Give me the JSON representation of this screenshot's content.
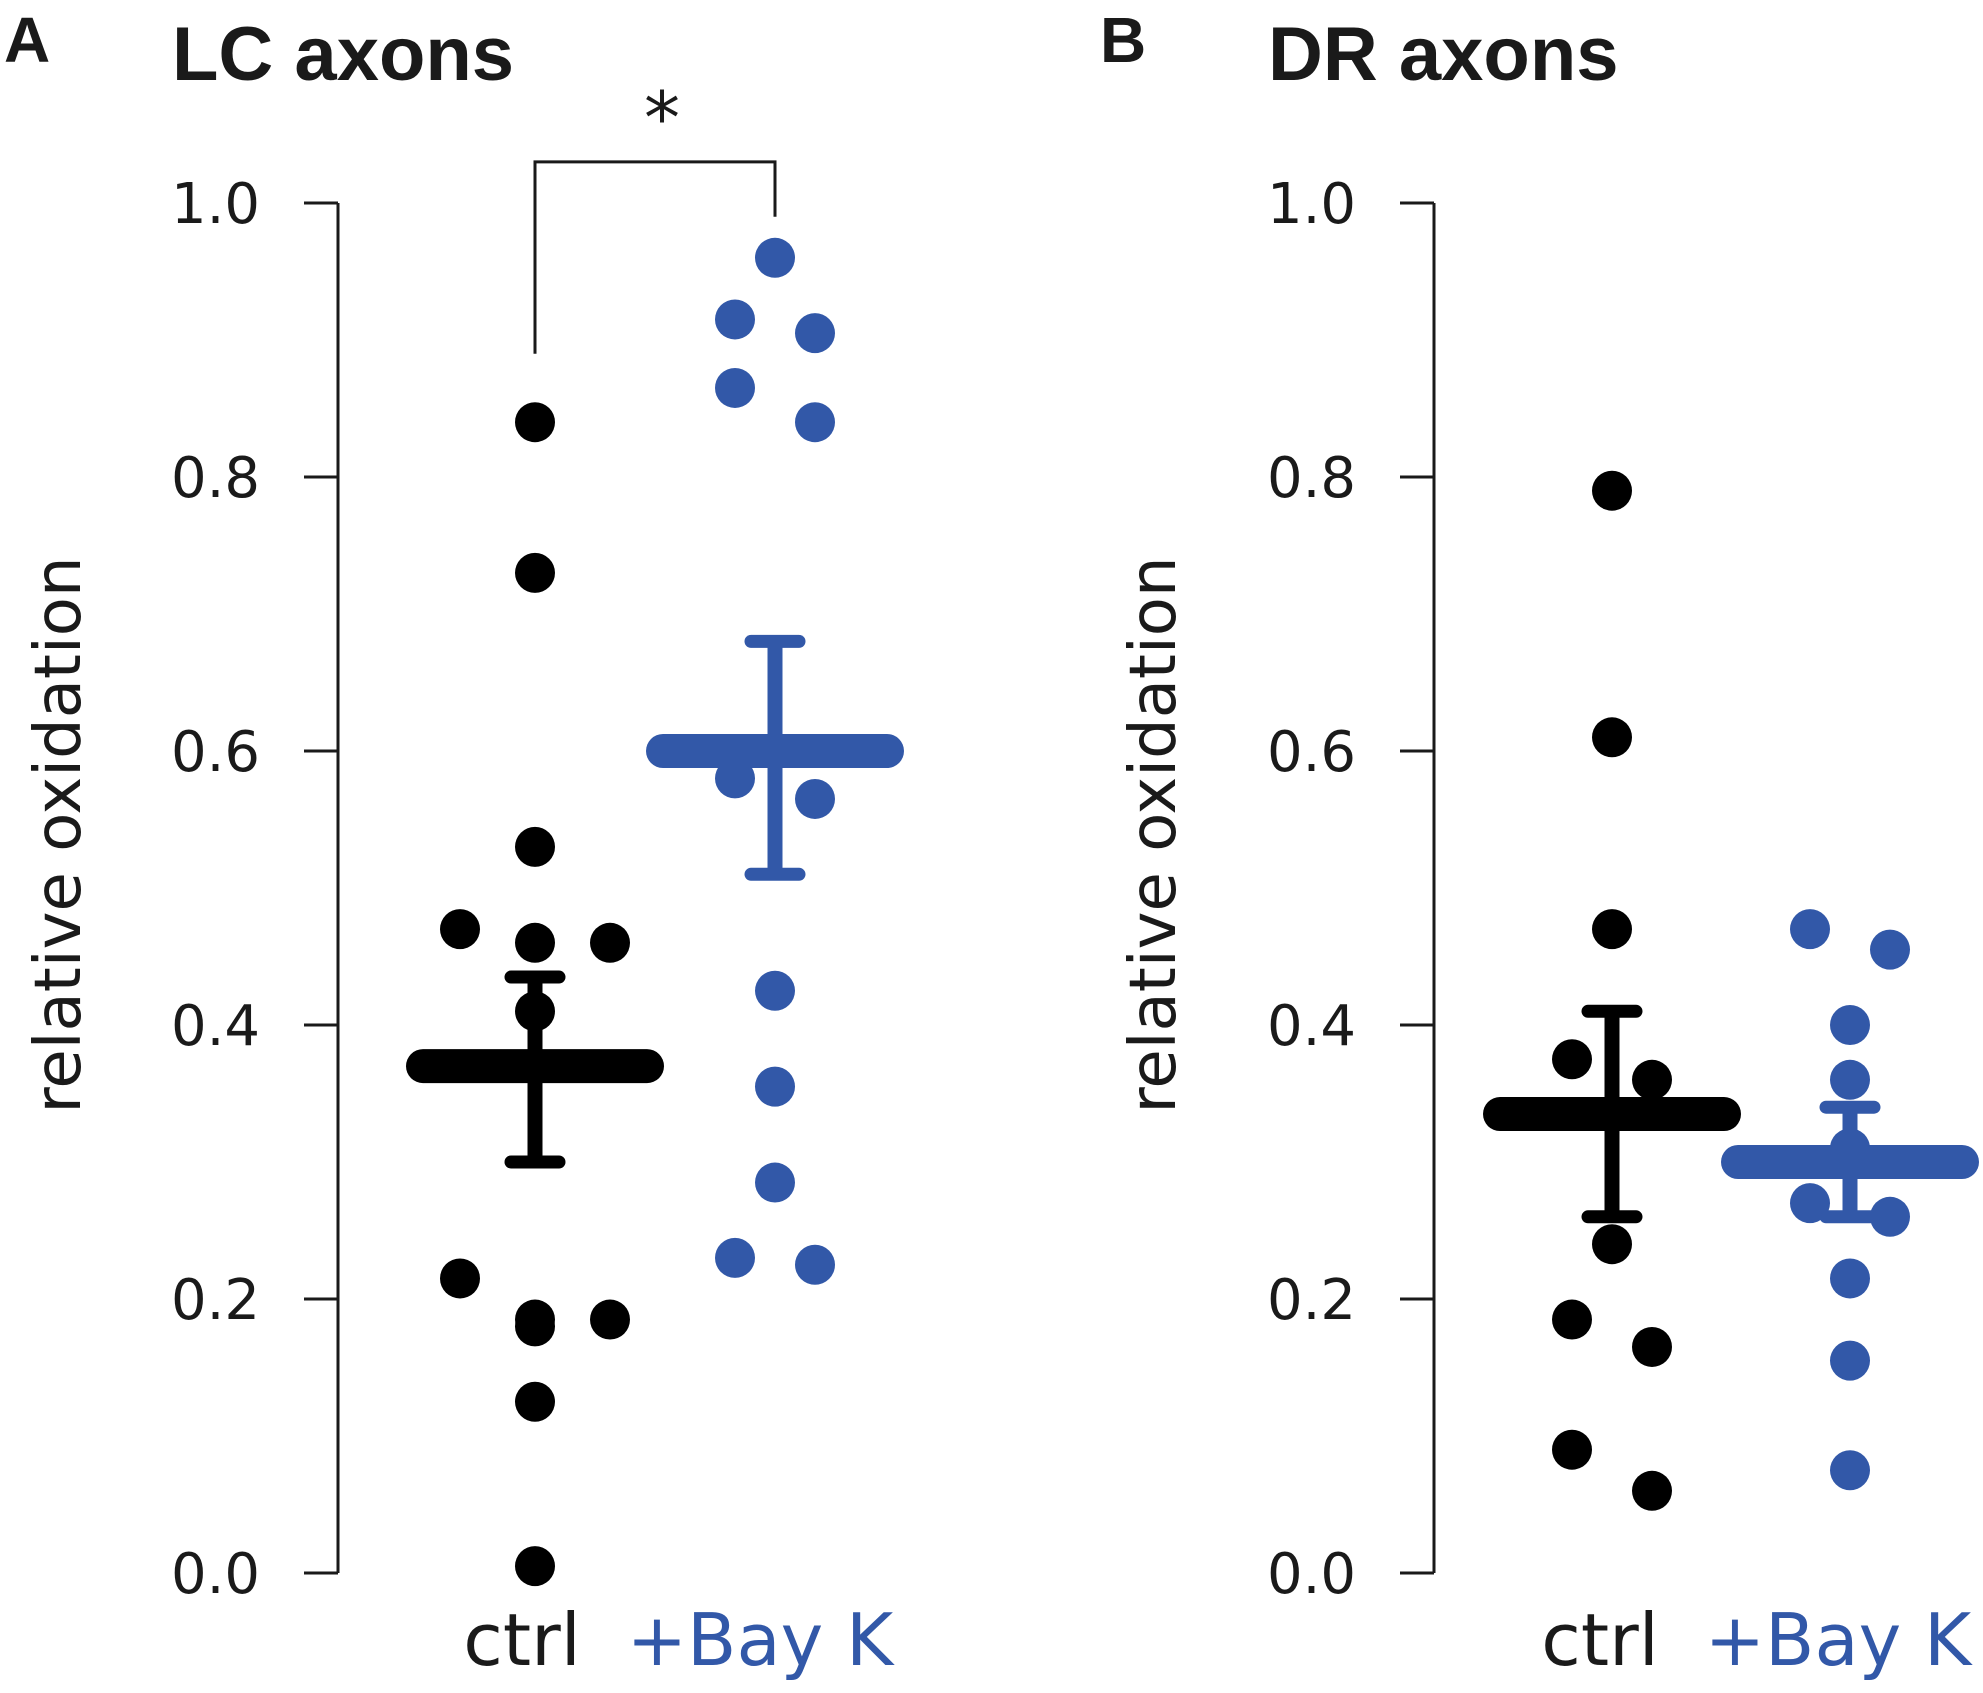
{
  "colors": {
    "ctrl": "#000000",
    "bayk": "#3258a8",
    "axis": "#1a1a1a"
  },
  "chart_data": [
    {
      "type": "scatter",
      "panel_letter": "A",
      "title": "LC axons",
      "ylabel": "relative oxidation",
      "ylim": [
        0,
        1.0
      ],
      "yticks": [
        "0.0",
        "0.2",
        "0.4",
        "0.6",
        "0.8",
        "1.0"
      ],
      "categories": [
        "ctrl",
        "+Bay K"
      ],
      "significance": "*",
      "series": [
        {
          "name": "ctrl",
          "mean": 0.37,
          "sem_low": 0.3,
          "sem_high": 0.435,
          "values": [
            0.84,
            0.73,
            0.53,
            0.47,
            0.46,
            0.46,
            0.41,
            0.215,
            0.185,
            0.185,
            0.18,
            0.125,
            0.005
          ]
        },
        {
          "name": "+Bay K",
          "mean": 0.6,
          "sem_low": 0.51,
          "sem_high": 0.68,
          "values": [
            0.96,
            0.915,
            0.905,
            0.865,
            0.84,
            0.58,
            0.565,
            0.425,
            0.355,
            0.285,
            0.23,
            0.225
          ]
        }
      ]
    },
    {
      "type": "scatter",
      "panel_letter": "B",
      "title": "DR axons",
      "ylabel": "relative oxidation",
      "ylim": [
        0,
        1.0
      ],
      "yticks": [
        "0.0",
        "0.2",
        "0.4",
        "0.6",
        "0.8",
        "1.0"
      ],
      "categories": [
        "ctrl",
        "+Bay K"
      ],
      "significance": "",
      "series": [
        {
          "name": "ctrl",
          "mean": 0.335,
          "sem_low": 0.26,
          "sem_high": 0.41,
          "values": [
            0.79,
            0.61,
            0.47,
            0.375,
            0.36,
            0.24,
            0.185,
            0.165,
            0.09,
            0.06
          ]
        },
        {
          "name": "+Bay K",
          "mean": 0.3,
          "sem_low": 0.26,
          "sem_high": 0.34,
          "values": [
            0.47,
            0.455,
            0.4,
            0.36,
            0.31,
            0.27,
            0.26,
            0.215,
            0.155,
            0.075
          ]
        }
      ]
    }
  ]
}
